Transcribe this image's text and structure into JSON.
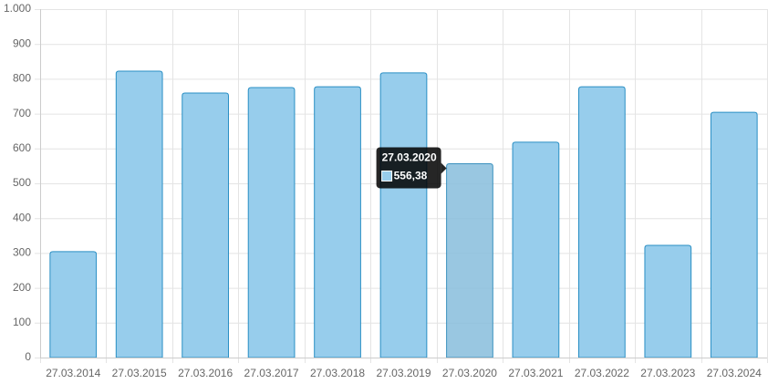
{
  "chart_data": {
    "type": "bar",
    "categories": [
      "27.03.2014",
      "27.03.2015",
      "27.03.2016",
      "27.03.2017",
      "27.03.2018",
      "27.03.2019",
      "27.03.2020",
      "27.03.2021",
      "27.03.2022",
      "27.03.2023",
      "27.03.2024"
    ],
    "values": [
      304,
      822,
      759,
      775,
      777,
      817,
      556.38,
      618,
      777,
      322,
      704
    ],
    "value_labels": [
      null,
      null,
      null,
      null,
      null,
      null,
      "556,38",
      null,
      null,
      null,
      null
    ],
    "color": "#97cdec",
    "border_color": "#2a8fc4",
    "ylim": [
      0,
      1000
    ],
    "yticks": [
      0,
      100,
      200,
      300,
      400,
      500,
      600,
      700,
      800,
      900,
      {
        "value": 1000,
        "label": "1.000"
      }
    ],
    "grid": true
  }
}
